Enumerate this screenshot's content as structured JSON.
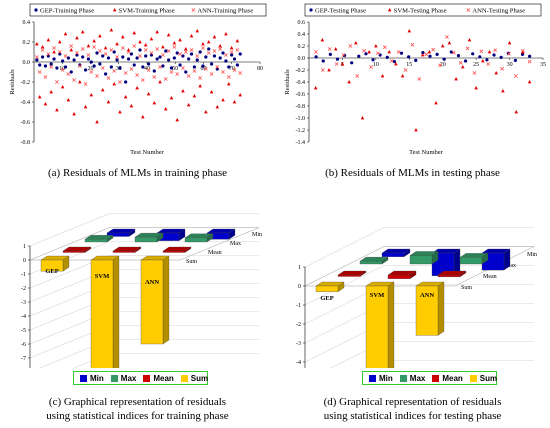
{
  "chart_data": [
    {
      "type": "scatter",
      "title": "",
      "xlabel": "Test Number",
      "ylabel": "Residuals",
      "xlim": [
        0,
        80
      ],
      "ylim": [
        -0.8,
        0.4
      ],
      "xticks": [
        "10",
        "20",
        "30",
        "40",
        "50",
        "60",
        "70",
        "80"
      ],
      "yticks": [
        "0.4",
        "0.2",
        "0.0",
        "-0.2",
        "-0.4",
        "-0.6",
        "-0.8"
      ],
      "legend": "top",
      "series": [
        {
          "name": "GEP-Training Phase",
          "color": "#000080",
          "marker": "circle",
          "y": [
            0.02,
            -0.03,
            0.05,
            -0.04,
            0.06,
            -0.02,
            0.03,
            -0.06,
            0.08,
            0.01,
            -0.05,
            0.04,
            -0.1,
            0.02,
            0.07,
            -0.03,
            0.05,
            -0.08,
            0.03,
            0.0,
            -0.04,
            0.09,
            -0.02,
            0.06,
            -0.12,
            0.04,
            -0.05,
            0.1,
            0.02,
            -0.06,
            0.05,
            -0.2,
            0.03,
            0.08,
            -0.03,
            0.04,
            0.12,
            -0.05,
            0.06,
            -0.02,
            0.07,
            -0.09,
            0.03,
            0.05,
            -0.04,
            0.11,
            0.02,
            -0.06,
            0.04,
            0.09,
            -0.03,
            0.06,
            -0.1,
            0.03,
            0.08,
            -0.05,
            0.02,
            0.1,
            -0.04,
            0.05,
            0.13,
            -0.02,
            0.06,
            -0.07,
            0.04,
            0.09,
            0.01,
            -0.05,
            0.07,
            0.03,
            -0.03,
            0.08
          ]
        },
        {
          "name": "SVM-Training Phase",
          "color": "#e60000",
          "marker": "triangle",
          "y": [
            0.18,
            -0.35,
            0.15,
            -0.42,
            0.22,
            -0.3,
            0.1,
            -0.48,
            0.2,
            -0.25,
            0.28,
            -0.38,
            0.12,
            -0.52,
            0.24,
            -0.2,
            0.3,
            -0.45,
            0.16,
            -0.33,
            0.21,
            -0.6,
            0.26,
            -0.28,
            0.14,
            -0.4,
            0.32,
            -0.22,
            0.18,
            -0.5,
            0.25,
            -0.35,
            0.12,
            -0.44,
            0.29,
            -0.26,
            0.2,
            -0.55,
            0.17,
            -0.32,
            0.23,
            -0.41,
            0.3,
            -0.2,
            0.15,
            -0.47,
            0.27,
            -0.36,
            0.19,
            -0.58,
            0.22,
            -0.29,
            0.13,
            -0.43,
            0.26,
            -0.34,
            0.31,
            -0.24,
            0.18,
            -0.5,
            0.2,
            -0.3,
            0.25,
            -0.45,
            0.16,
            -0.38,
            0.28,
            -0.22,
            0.14,
            -0.4,
            0.21,
            -0.33
          ]
        },
        {
          "name": "ANN-Training Phase",
          "color": "#ff4d4d",
          "marker": "cross",
          "y": [
            0.05,
            -0.1,
            0.12,
            -0.15,
            0.08,
            -0.05,
            0.14,
            -0.2,
            0.1,
            -0.08,
            0.06,
            -0.12,
            0.16,
            -0.18,
            0.09,
            -0.04,
            0.13,
            -0.22,
            0.07,
            -0.1,
            0.15,
            -0.14,
            0.11,
            -0.06,
            0.08,
            -0.16,
            0.12,
            -0.09,
            0.05,
            -0.2,
            0.14,
            -0.11,
            0.1,
            -0.07,
            0.16,
            -0.13,
            0.06,
            -0.18,
            0.12,
            -0.08,
            0.09,
            -0.15,
            0.13,
            -0.05,
            0.07,
            -0.17,
            0.11,
            -0.1,
            0.15,
            -0.12,
            0.08,
            -0.06,
            0.1,
            -0.14,
            0.12,
            -0.09,
            0.06,
            -0.16,
            0.14,
            -0.07,
            0.09,
            -0.12,
            0.11,
            -0.05,
            0.13,
            -0.1,
            0.07,
            -0.15,
            0.1,
            -0.08,
            0.12,
            -0.11
          ]
        }
      ]
    },
    {
      "type": "scatter",
      "title": "",
      "xlabel": "Test Number",
      "ylabel": "Residuals",
      "xlim": [
        0,
        35
      ],
      "ylim": [
        -1.4,
        0.6
      ],
      "xticks": [
        "5",
        "10",
        "15",
        "20",
        "25",
        "30",
        "35"
      ],
      "yticks": [
        "0.6",
        "0.4",
        "0.2",
        "0.0",
        "-0.2",
        "-0.4",
        "-0.6",
        "-0.8",
        "-1.0",
        "-1.2",
        "-1.4"
      ],
      "legend": "top",
      "series": [
        {
          "name": "GEP-Testing Phase",
          "color": "#000080",
          "marker": "circle",
          "y": [
            0.02,
            -0.05,
            0.06,
            -0.02,
            0.04,
            -0.08,
            0.03,
            0.07,
            -0.03,
            0.05,
            0.01,
            -0.06,
            0.08,
            0.02,
            -0.04,
            0.09,
            0.03,
            0.06,
            -0.02,
            0.1,
            0.04,
            -0.05,
            0.07,
            0.02,
            -0.03,
            0.05,
            0.01,
            0.08,
            -0.04,
            0.06,
            0.03
          ]
        },
        {
          "name": "SVM-Testing Phase",
          "color": "#e60000",
          "marker": "triangle",
          "y": [
            -0.5,
            0.3,
            -0.2,
            0.15,
            -0.1,
            -0.4,
            0.25,
            -1.0,
            0.1,
            0.2,
            -0.3,
            0.1,
            -0.1,
            -0.3,
            0.45,
            -1.2,
            0.05,
            0.1,
            -0.75,
            0.2,
            0.25,
            -0.35,
            -0.15,
            0.3,
            -0.5,
            -0.05,
            0.1,
            -0.25,
            -0.55,
            0.25,
            -0.9,
            0.1,
            -0.4
          ]
        },
        {
          "name": "ANN-Testing Phase",
          "color": "#ff4d4d",
          "marker": "cross",
          "y": [
            0.1,
            -0.2,
            0.15,
            -0.1,
            0.05,
            0.2,
            -0.3,
            0.12,
            -0.15,
            0.08,
            0.18,
            -0.05,
            0.1,
            -0.2,
            0.22,
            -0.35,
            0.06,
            0.14,
            -0.12,
            0.35,
            0.09,
            -0.08,
            0.16,
            -0.25,
            0.11,
            -0.1,
            0.13,
            -0.18,
            0.07,
            -0.3,
            0.12,
            -0.06
          ]
        }
      ]
    },
    {
      "type": "bar",
      "view": "3d",
      "title": "",
      "categories": [
        "GEP",
        "SVM",
        "ANN"
      ],
      "depth_labels": [
        "Min",
        "Max",
        "Mean",
        "Sum"
      ],
      "yticks": [
        "1",
        "0",
        "-1",
        "-2",
        "-3",
        "-4",
        "-5",
        "-6",
        "-7",
        "-8",
        "-9"
      ],
      "ylim": [
        -9,
        1
      ],
      "legend": "bottom",
      "series": [
        {
          "name": "Min",
          "color": "#0000cc",
          "values": [
            -0.25,
            -0.55,
            -0.45
          ]
        },
        {
          "name": "Max",
          "color": "#339966",
          "values": [
            0.2,
            0.35,
            0.3
          ]
        },
        {
          "name": "Mean",
          "color": "#cc0000",
          "values": [
            0.0,
            -0.1,
            -0.05
          ]
        },
        {
          "name": "Sum",
          "color": "#ffcc00",
          "values": [
            -0.8,
            -8.6,
            -6.0
          ]
        }
      ]
    },
    {
      "type": "bar",
      "view": "3d",
      "title": "",
      "categories": [
        "GEP",
        "SVM",
        "ANN"
      ],
      "depth_labels": [
        "Min",
        "Max",
        "Mean",
        "Sum"
      ],
      "yticks": [
        "1",
        "0",
        "-1",
        "-2",
        "-3",
        "-4",
        "-5",
        "-6",
        "-7"
      ],
      "ylim": [
        -7,
        1
      ],
      "legend": "bottom",
      "series": [
        {
          "name": "Min",
          "color": "#0000cc",
          "values": [
            -0.2,
            -1.2,
            -0.9
          ]
        },
        {
          "name": "Max",
          "color": "#339966",
          "values": [
            0.15,
            0.45,
            0.35
          ]
        },
        {
          "name": "Mean",
          "color": "#cc0000",
          "values": [
            0.0,
            -0.2,
            -0.1
          ]
        },
        {
          "name": "Sum",
          "color": "#ffcc00",
          "values": [
            -0.3,
            -6.6,
            -2.6
          ]
        }
      ]
    }
  ],
  "captions": {
    "a": "(a) Residuals of MLMs in training phase",
    "b": "(b) Residuals of MLMs in testing phase",
    "c1": "(c)  Graphical representation of residuals",
    "c2": "using statistical indices for training phase",
    "d1": "(d)  Graphical representation of residuals",
    "d2": "using statistical indices for testing phase"
  }
}
